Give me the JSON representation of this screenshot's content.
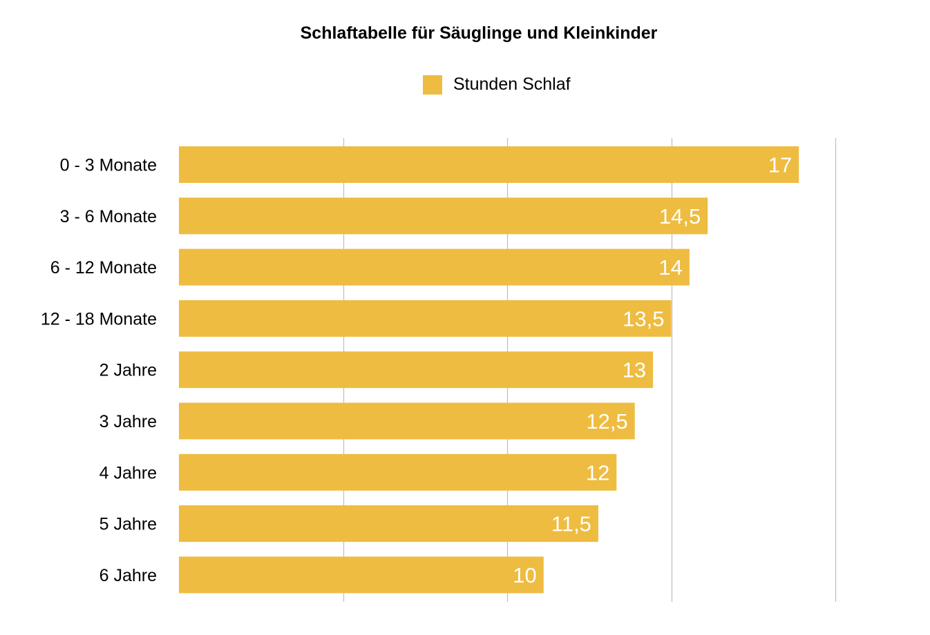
{
  "chart_data": {
    "type": "bar",
    "orientation": "horizontal",
    "title": "Schlaftabelle für Säuglinge und Kleinkinder",
    "xlabel": "",
    "ylabel": "",
    "categories": [
      "0 - 3 Monate",
      "3 - 6 Monate",
      "6 - 12 Monate",
      "12 - 18 Monate",
      "2 Jahre",
      "3 Jahre",
      "4 Jahre",
      "5 Jahre",
      "6 Jahre"
    ],
    "series": [
      {
        "name": "Stunden Schlaf",
        "color": "#EEBC40",
        "values": [
          17,
          14.5,
          14,
          13.5,
          13,
          12.5,
          12,
          11.5,
          10
        ],
        "data_labels": [
          "17",
          "14,5",
          "14",
          "13,5",
          "13",
          "12,5",
          "12",
          "11,5",
          "10"
        ]
      }
    ],
    "xlim": [
      0,
      18
    ],
    "gridlines": [
      4.5,
      9,
      13.5,
      18
    ],
    "grid": true,
    "x_tick_labels_visible": false,
    "legend": {
      "position": "top-center",
      "entries": [
        "Stunden Schlaf"
      ]
    },
    "data_label_color": "#FFFFFF",
    "gridline_color": "#BDBDBD"
  }
}
